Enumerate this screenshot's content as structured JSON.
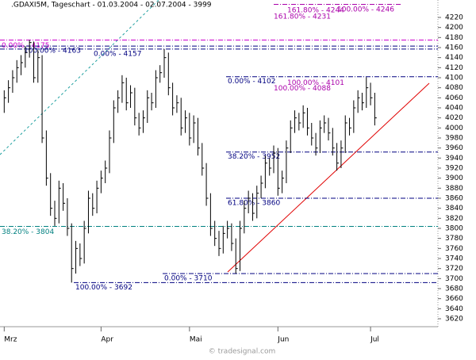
{
  "chart_data": {
    "type": "ohlc",
    "title": ".GDAXI5M, Tageschart - 01.03.2004 - 02.07.2004 - 3999",
    "footer": "© tradesignal.com",
    "color": "#000000",
    "ylim": [
      3620,
      4220
    ],
    "yticks": [
      3620,
      3640,
      3660,
      3680,
      3700,
      3720,
      3740,
      3760,
      3780,
      3800,
      3820,
      3840,
      3860,
      3880,
      3900,
      3920,
      3940,
      3960,
      3980,
      4000,
      4020,
      4040,
      4060,
      4080,
      4100,
      4120,
      4140,
      4160,
      4180,
      4200,
      4220
    ],
    "xlim": [
      -1,
      103
    ],
    "xticks": [
      {
        "value": 0,
        "label": "Mrz"
      },
      {
        "value": 23,
        "label": "Apr"
      },
      {
        "value": 44,
        "label": "Mai"
      },
      {
        "value": 65,
        "label": "Jun"
      },
      {
        "value": 87,
        "label": "Jul"
      }
    ],
    "high": [
      4075,
      4095,
      4115,
      4135,
      4145,
      4163,
      4175,
      4172,
      4155,
      4145,
      3995,
      3910,
      3855,
      3895,
      3890,
      3860,
      3810,
      3775,
      3770,
      3815,
      3875,
      3870,
      3895,
      3915,
      3935,
      3995,
      4055,
      4075,
      4105,
      4100,
      4085,
      4080,
      4030,
      4035,
      4075,
      4070,
      4115,
      4125,
      4157,
      4150,
      4090,
      4065,
      4060,
      4035,
      4030,
      4025,
      4020,
      3970,
      3930,
      3870,
      3815,
      3795,
      3805,
      3815,
      3810,
      3780,
      3815,
      3855,
      3875,
      3870,
      3885,
      3905,
      3945,
      3940,
      3965,
      3960,
      3915,
      3975,
      4015,
      4035,
      4030,
      4045,
      4040,
      4010,
      3990,
      4015,
      4025,
      4020,
      4000,
      3970,
      3975,
      4025,
      4020,
      4055,
      4075,
      4070,
      4101,
      4090,
      4070
    ],
    "low": [
      4030,
      4050,
      4070,
      4090,
      4105,
      4120,
      4140,
      4090,
      4090,
      3970,
      3885,
      3825,
      3805,
      3810,
      3835,
      3785,
      3692,
      3710,
      3725,
      3730,
      3790,
      3825,
      3830,
      3870,
      3890,
      3910,
      3970,
      4030,
      4050,
      4035,
      4040,
      4005,
      3985,
      3990,
      4010,
      4035,
      4040,
      4090,
      4100,
      4065,
      4025,
      4030,
      3985,
      3990,
      3965,
      3970,
      3945,
      3905,
      3845,
      3785,
      3765,
      3745,
      3750,
      3780,
      3755,
      3710,
      3715,
      3790,
      3830,
      3815,
      3820,
      3860,
      3880,
      3905,
      3910,
      3865,
      3870,
      3890,
      3950,
      3990,
      3995,
      4000,
      3985,
      3965,
      3945,
      3950,
      3990,
      3975,
      3945,
      3915,
      3920,
      3950,
      3985,
      3990,
      4030,
      4035,
      4040,
      4045,
      4005
    ],
    "close": [
      4060,
      4080,
      4100,
      4120,
      4130,
      4150,
      4170,
      4100,
      4140,
      3980,
      3900,
      3840,
      3820,
      3880,
      3850,
      3800,
      3720,
      3760,
      3740,
      3800,
      3860,
      3840,
      3880,
      3900,
      3920,
      3980,
      4040,
      4060,
      4090,
      4050,
      4070,
      4020,
      4000,
      4020,
      4060,
      4050,
      4100,
      4110,
      4140,
      4080,
      4040,
      4050,
      4000,
      4020,
      3980,
      4010,
      3960,
      3920,
      3860,
      3800,
      3780,
      3760,
      3790,
      3800,
      3770,
      3720,
      3800,
      3840,
      3860,
      3830,
      3870,
      3890,
      3930,
      3920,
      3950,
      3880,
      3900,
      3960,
      4000,
      4020,
      4010,
      4030,
      4000,
      3980,
      3960,
      4000,
      4010,
      3990,
      3960,
      3930,
      3960,
      4010,
      4000,
      4040,
      4060,
      4050,
      4080,
      4060,
      4020
    ],
    "levels": [
      {
        "label": "0.00% - 4175",
        "value": 4175,
        "color": "#cc00cc",
        "line": true
      },
      {
        "label": "100.00% - 4163",
        "value": 4163,
        "color": "#000080",
        "line": true
      },
      {
        "label": "0.00% - 4157",
        "value": 4157,
        "color": "#000080",
        "line": true
      },
      {
        "label": "0.00% - 4102",
        "value": 4102,
        "color": "#000080",
        "line": true
      },
      {
        "label": "100.00% - 4101",
        "value": 4101,
        "color": "#aa00aa",
        "line": false
      },
      {
        "label": "100.00% - 4088",
        "value": 4088,
        "color": "#aa00aa",
        "line": false
      },
      {
        "label": "38.20% - 3952",
        "value": 3952,
        "color": "#000080",
        "line": true
      },
      {
        "label": "61.80% - 3860",
        "value": 3860,
        "color": "#000080",
        "line": true
      },
      {
        "label": "38.20% - 3804",
        "value": 3804,
        "color": "#008080",
        "line": true
      },
      {
        "label": "0.00% - 3710",
        "value": 3710,
        "color": "#000080",
        "line": true
      },
      {
        "label": "100.00% - 3692",
        "value": 3692,
        "color": "#000080",
        "line": true
      },
      {
        "label": "161.80% - 4244",
        "value": 4244,
        "color": "#aa00aa",
        "line": false
      },
      {
        "label": "161.80% - 4231",
        "value": 4231,
        "color": "#aa00aa",
        "line": false
      },
      {
        "label": "100.00% - 4246",
        "value": 4246,
        "color": "#aa00aa",
        "line": true
      }
    ]
  }
}
